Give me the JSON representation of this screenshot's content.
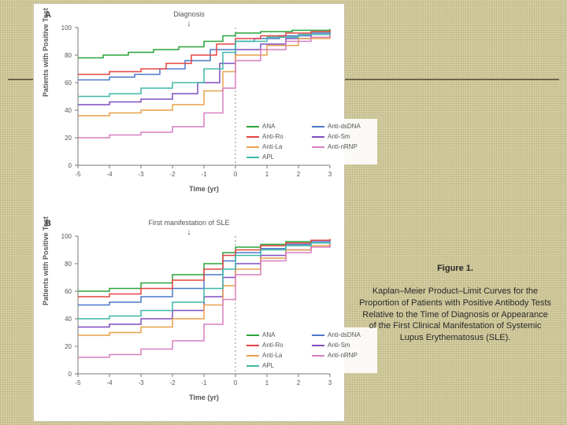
{
  "background_color": "#d4cda0",
  "rule_color": "#6a6646",
  "figure": {
    "panels": [
      {
        "key": "A",
        "title": "Diagnosis",
        "ylabel": "Patients with Positive Test",
        "xlabel": "Time (yr)",
        "xlim": [
          -5,
          3
        ],
        "ylim": [
          0,
          100
        ],
        "xticks": [
          -5,
          -4,
          -3,
          -2,
          -1,
          0,
          1,
          2,
          3
        ],
        "yticks": [
          0,
          20,
          40,
          60,
          80,
          100
        ],
        "axis_color": "#777777",
        "dash_color": "#888888",
        "series": [
          {
            "name": "ANA",
            "color": "#2aa33a",
            "x": [
              -5,
              -4.2,
              -3.4,
              -2.6,
              -1.8,
              -1.0,
              -0.4,
              0,
              0.8,
              1.8,
              3
            ],
            "y": [
              78,
              80,
              82,
              84,
              86,
              90,
              94,
              96,
              97,
              98,
              99
            ]
          },
          {
            "name": "Anti-dsDNA",
            "color": "#4a78c8",
            "x": [
              -5,
              -4.0,
              -3.2,
              -2.4,
              -1.6,
              -0.8,
              0,
              0.6,
              1.4,
              2.4,
              3
            ],
            "y": [
              62,
              64,
              66,
              70,
              76,
              84,
              90,
              92,
              94,
              96,
              97
            ]
          },
          {
            "name": "Anti-Ro",
            "color": "#e54343",
            "x": [
              -5,
              -4.0,
              -3.0,
              -2.2,
              -1.4,
              -0.6,
              0,
              0.8,
              1.6,
              2.4,
              3
            ],
            "y": [
              66,
              68,
              70,
              74,
              80,
              88,
              92,
              94,
              96,
              97,
              98
            ]
          },
          {
            "name": "Anti-Sm",
            "color": "#7f4fbf",
            "x": [
              -5,
              -4.0,
              -3.0,
              -2.0,
              -1.2,
              -0.5,
              0,
              0.8,
              1.6,
              2.4,
              3
            ],
            "y": [
              44,
              46,
              48,
              52,
              60,
              74,
              84,
              88,
              92,
              95,
              96
            ]
          },
          {
            "name": "Anti-La",
            "color": "#e8a04a",
            "x": [
              -5,
              -4.0,
              -3.0,
              -2.0,
              -1.0,
              -0.4,
              0,
              1.0,
              2.0,
              3
            ],
            "y": [
              36,
              38,
              40,
              44,
              54,
              68,
              80,
              87,
              92,
              95
            ]
          },
          {
            "name": "Anti-nRNP",
            "color": "#d77fbf",
            "x": [
              -5,
              -4.0,
              -3.0,
              -2.0,
              -1.0,
              -0.4,
              0,
              0.8,
              1.6,
              2.4,
              3
            ],
            "y": [
              20,
              22,
              24,
              28,
              38,
              56,
              76,
              84,
              90,
              93,
              95
            ]
          },
          {
            "name": "APL",
            "color": "#3fb8a8",
            "x": [
              -5,
              -4.0,
              -3.0,
              -2.0,
              -1.0,
              -0.4,
              0,
              1.0,
              2.0,
              3
            ],
            "y": [
              50,
              52,
              56,
              60,
              70,
              82,
              90,
              93,
              95,
              96
            ]
          }
        ],
        "legend_order": [
          "ANA",
          "Anti-Ro",
          "Anti-La",
          "APL",
          "Anti-dsDNA",
          "Anti-Sm",
          "Anti-nRNP"
        ],
        "legend_cols": 2
      },
      {
        "key": "B",
        "title": "First manifestation of SLE",
        "ylabel": "Patients with Positive Test",
        "xlabel": "Time (yr)",
        "xlim": [
          -5,
          3
        ],
        "ylim": [
          0,
          100
        ],
        "xticks": [
          -5,
          -4,
          -3,
          -2,
          -1,
          0,
          1,
          2,
          3
        ],
        "yticks": [
          0,
          20,
          40,
          60,
          80,
          100
        ],
        "axis_color": "#777777",
        "dash_color": "#888888",
        "series": [
          {
            "name": "ANA",
            "color": "#2aa33a",
            "x": [
              -5,
              -4.0,
              -3.0,
              -2.0,
              -1.0,
              -0.4,
              0,
              0.8,
              1.6,
              2.4,
              3
            ],
            "y": [
              60,
              62,
              66,
              72,
              80,
              88,
              92,
              94,
              96,
              97,
              98
            ]
          },
          {
            "name": "Anti-dsDNA",
            "color": "#4a78c8",
            "x": [
              -5,
              -4.0,
              -3.0,
              -2.0,
              -1.0,
              -0.4,
              0,
              0.8,
              1.6,
              2.4,
              3
            ],
            "y": [
              50,
              52,
              56,
              62,
              72,
              82,
              88,
              91,
              94,
              96,
              97
            ]
          },
          {
            "name": "Anti-Ro",
            "color": "#e54343",
            "x": [
              -5,
              -4.0,
              -3.0,
              -2.0,
              -1.0,
              -0.4,
              0,
              0.8,
              1.6,
              2.4,
              3
            ],
            "y": [
              56,
              58,
              62,
              68,
              76,
              86,
              90,
              93,
              95,
              97,
              98
            ]
          },
          {
            "name": "Anti-Sm",
            "color": "#7f4fbf",
            "x": [
              -5,
              -4.0,
              -3.0,
              -2.0,
              -1.0,
              -0.4,
              0,
              0.8,
              1.6,
              2.4,
              3
            ],
            "y": [
              34,
              36,
              40,
              46,
              56,
              70,
              80,
              86,
              90,
              93,
              95
            ]
          },
          {
            "name": "Anti-La",
            "color": "#e8a04a",
            "x": [
              -5,
              -4.0,
              -3.0,
              -2.0,
              -1.0,
              -0.4,
              0,
              0.8,
              1.6,
              2.4,
              3
            ],
            "y": [
              28,
              30,
              34,
              40,
              50,
              64,
              76,
              84,
              90,
              93,
              95
            ]
          },
          {
            "name": "Anti-nRNP",
            "color": "#d77fbf",
            "x": [
              -5,
              -4.0,
              -3.0,
              -2.0,
              -1.0,
              -0.4,
              0,
              0.8,
              1.6,
              2.4,
              3
            ],
            "y": [
              12,
              14,
              18,
              24,
              36,
              54,
              72,
              82,
              88,
              92,
              94
            ]
          },
          {
            "name": "APL",
            "color": "#3fb8a8",
            "x": [
              -5,
              -4.0,
              -3.0,
              -2.0,
              -1.0,
              -0.4,
              0,
              0.8,
              1.6,
              2.4,
              3
            ],
            "y": [
              40,
              42,
              46,
              52,
              62,
              76,
              86,
              90,
              93,
              95,
              96
            ]
          }
        ],
        "legend_order": [
          "ANA",
          "Anti-Ro",
          "Anti-La",
          "APL",
          "Anti-dsDNA",
          "Anti-Sm",
          "Anti-nRNP"
        ],
        "legend_cols": 2
      }
    ]
  },
  "caption": {
    "title": "Figure 1.",
    "body": "Kaplan–Meier Product–Limit Curves for the Proportion of Patients with Positive Antibody Tests Relative to the Time of Diagnosis or Appearance of the First Clinical Manifestation of Systemic Lupus Erythematosus (SLE)."
  }
}
